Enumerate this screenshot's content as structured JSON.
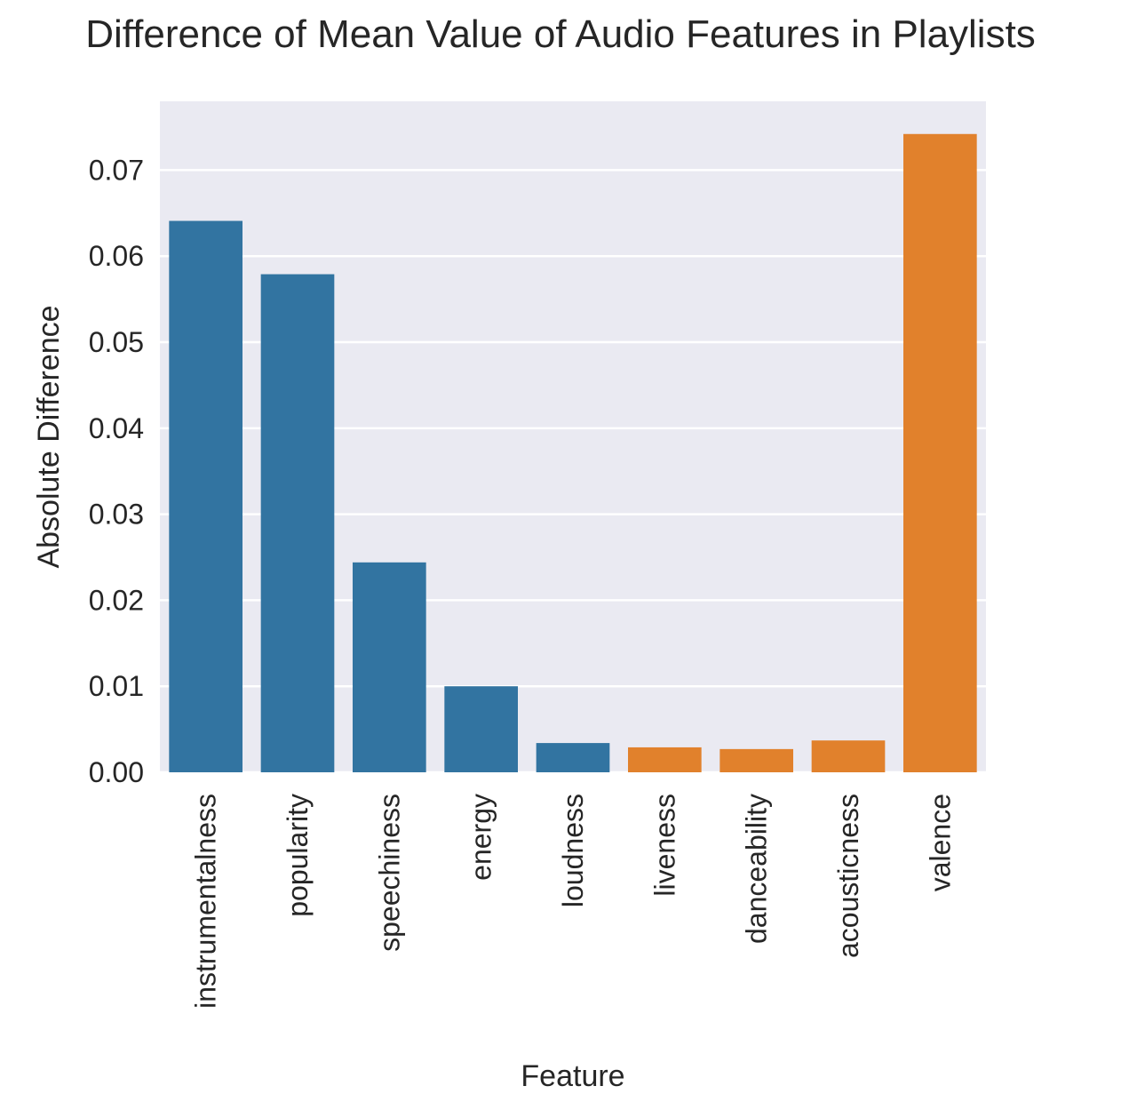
{
  "chart_data": {
    "type": "bar",
    "title": "Difference of Mean Value of Audio Features in Playlists",
    "xlabel": "Feature",
    "ylabel": "Absolute Difference",
    "categories": [
      "instrumentalness",
      "popularity",
      "speechiness",
      "energy",
      "loudness",
      "liveness",
      "danceability",
      "acousticness",
      "valence"
    ],
    "values": [
      0.0641,
      0.0579,
      0.0244,
      0.01,
      0.0034,
      0.0029,
      0.0027,
      0.0037,
      0.0742
    ],
    "bar_colors": [
      "#3274a1",
      "#3274a1",
      "#3274a1",
      "#3274a1",
      "#3274a1",
      "#e1812c",
      "#e1812c",
      "#e1812c",
      "#e1812c"
    ],
    "ylim": [
      0,
      0.078
    ],
    "yticks": [
      0.0,
      0.01,
      0.02,
      0.03,
      0.04,
      0.05,
      0.06,
      0.07
    ],
    "ytick_labels": [
      "0.00",
      "0.01",
      "0.02",
      "0.03",
      "0.04",
      "0.05",
      "0.06",
      "0.07"
    ],
    "grid": true,
    "background": "#eaeaf2",
    "grid_color": "#ffffff"
  }
}
